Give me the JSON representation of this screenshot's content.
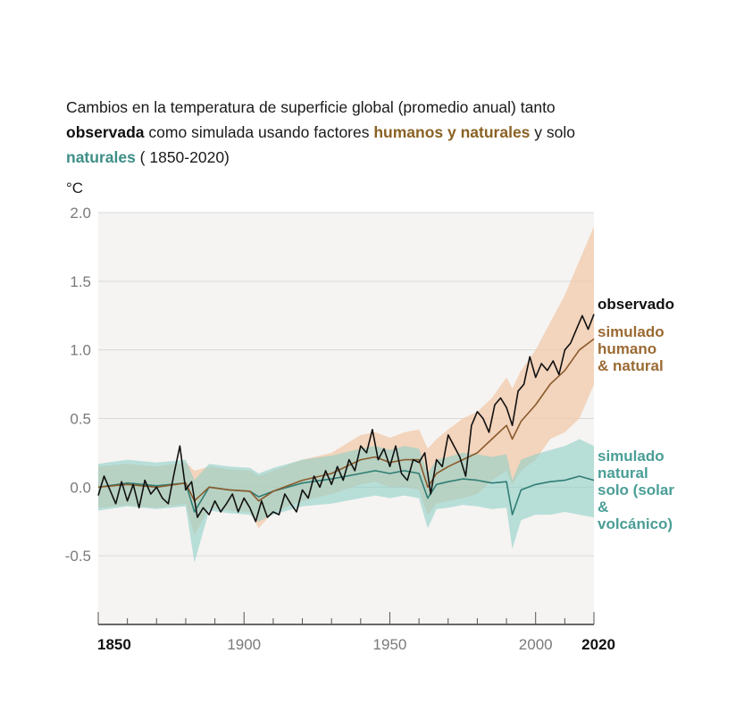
{
  "header": {
    "title_part1": "Cambios en la temperatura de superficie global (promedio anual) tanto",
    "title_bold_observed": "observada",
    "title_part2": " como simulada usando factores ",
    "title_human": "humanos y naturales",
    "title_part3": " y solo",
    "title_natural": "naturales",
    "title_part4": " ( 1850-2020)"
  },
  "colors": {
    "observed": "#111111",
    "human_line": "#8a5a2b",
    "human_band": "#f2c9aa",
    "natural_line": "#2f7d74",
    "natural_band": "#8fcfc6",
    "plot_bg": "#f5f4f2",
    "grid": "#d9d9d9"
  },
  "chart_data": {
    "type": "line",
    "title": "Cambios en la temperatura de superficie global (promedio anual) tanto observada como simulada usando factores humanos y naturales y solo naturales ( 1850-2020)",
    "ylabel": "°C",
    "xlim": [
      1850,
      2020
    ],
    "ylim": [
      -1.0,
      2.0
    ],
    "yticks": [
      "2.0",
      "1.5",
      "1.0",
      "0.5",
      "0.0",
      "-0.5"
    ],
    "ytick_values": [
      2.0,
      1.5,
      1.0,
      0.5,
      0.0,
      -0.5
    ],
    "xticks": [
      "1850",
      "1900",
      "1950",
      "2000",
      "2020"
    ],
    "xtick_values": [
      1850,
      1900,
      1950,
      2000,
      2020
    ],
    "series": [
      {
        "name": "observado",
        "label_lines": [
          "observado"
        ],
        "x": [
          1850,
          1852,
          1854,
          1856,
          1858,
          1860,
          1862,
          1864,
          1866,
          1868,
          1870,
          1872,
          1874,
          1876,
          1878,
          1880,
          1882,
          1884,
          1886,
          1888,
          1890,
          1892,
          1894,
          1896,
          1898,
          1900,
          1902,
          1904,
          1906,
          1908,
          1910,
          1912,
          1914,
          1916,
          1918,
          1920,
          1922,
          1924,
          1926,
          1928,
          1930,
          1932,
          1934,
          1936,
          1938,
          1940,
          1942,
          1944,
          1946,
          1948,
          1950,
          1952,
          1954,
          1956,
          1958,
          1960,
          1962,
          1964,
          1966,
          1968,
          1970,
          1972,
          1974,
          1976,
          1978,
          1980,
          1982,
          1984,
          1986,
          1988,
          1990,
          1992,
          1994,
          1996,
          1998,
          2000,
          2002,
          2004,
          2006,
          2008,
          2010,
          2012,
          2014,
          2016,
          2018,
          2020
        ],
        "values": [
          -0.06,
          0.08,
          -0.02,
          -0.12,
          0.04,
          -0.1,
          0.02,
          -0.15,
          0.05,
          -0.05,
          0.0,
          -0.08,
          -0.12,
          0.1,
          0.3,
          -0.02,
          0.04,
          -0.22,
          -0.15,
          -0.2,
          -0.1,
          -0.18,
          -0.12,
          -0.05,
          -0.18,
          -0.08,
          -0.15,
          -0.25,
          -0.1,
          -0.22,
          -0.18,
          -0.2,
          -0.05,
          -0.12,
          -0.18,
          -0.02,
          -0.08,
          0.08,
          0.0,
          0.12,
          0.02,
          0.15,
          0.05,
          0.2,
          0.12,
          0.3,
          0.25,
          0.42,
          0.2,
          0.28,
          0.15,
          0.3,
          0.1,
          0.05,
          0.2,
          0.18,
          0.25,
          -0.05,
          0.2,
          0.15,
          0.38,
          0.3,
          0.22,
          0.08,
          0.45,
          0.55,
          0.5,
          0.4,
          0.6,
          0.65,
          0.58,
          0.45,
          0.7,
          0.75,
          0.95,
          0.8,
          0.9,
          0.85,
          0.92,
          0.82,
          1.0,
          1.05,
          1.15,
          1.25,
          1.15,
          1.26
        ]
      },
      {
        "name": "simulado humano & natural",
        "label_lines": [
          "simulado",
          "humano",
          "& natural"
        ],
        "x": [
          1850,
          1860,
          1870,
          1880,
          1883,
          1888,
          1895,
          1902,
          1905,
          1910,
          1920,
          1930,
          1940,
          1945,
          1950,
          1955,
          1960,
          1963,
          1966,
          1970,
          1975,
          1980,
          1985,
          1990,
          1992,
          1995,
          2000,
          2005,
          2010,
          2015,
          2020
        ],
        "values": [
          0.0,
          0.02,
          0.0,
          0.03,
          -0.1,
          0.0,
          -0.02,
          -0.03,
          -0.1,
          -0.03,
          0.05,
          0.1,
          0.2,
          0.22,
          0.18,
          0.2,
          0.2,
          0.0,
          0.1,
          0.15,
          0.2,
          0.25,
          0.35,
          0.45,
          0.35,
          0.48,
          0.6,
          0.75,
          0.85,
          1.0,
          1.08
        ],
        "band_upper": [
          0.15,
          0.17,
          0.15,
          0.18,
          0.12,
          0.15,
          0.13,
          0.12,
          0.08,
          0.12,
          0.2,
          0.25,
          0.38,
          0.4,
          0.36,
          0.4,
          0.42,
          0.28,
          0.35,
          0.42,
          0.5,
          0.55,
          0.65,
          0.8,
          0.72,
          0.85,
          1.0,
          1.2,
          1.4,
          1.65,
          1.9
        ],
        "band_lower": [
          -0.15,
          -0.13,
          -0.15,
          -0.12,
          -0.35,
          -0.15,
          -0.17,
          -0.18,
          -0.3,
          -0.18,
          -0.1,
          -0.05,
          0.02,
          0.04,
          0.0,
          0.0,
          -0.02,
          -0.2,
          -0.12,
          -0.1,
          -0.08,
          -0.05,
          0.05,
          0.12,
          0.02,
          0.12,
          0.2,
          0.35,
          0.4,
          0.5,
          0.75
        ]
      },
      {
        "name": "simulado natural solo (solar & volcánico)",
        "label_lines": [
          "simulado",
          "natural",
          "solo (solar",
          "&",
          "volcánico)"
        ],
        "x": [
          1850,
          1860,
          1870,
          1880,
          1883,
          1888,
          1895,
          1902,
          1905,
          1910,
          1920,
          1930,
          1940,
          1945,
          1950,
          1955,
          1960,
          1963,
          1966,
          1970,
          1975,
          1980,
          1985,
          1990,
          1992,
          1995,
          2000,
          2005,
          2010,
          2015,
          2020
        ],
        "values": [
          0.0,
          0.03,
          0.01,
          0.03,
          -0.18,
          0.0,
          -0.02,
          -0.03,
          -0.07,
          -0.03,
          0.03,
          0.06,
          0.1,
          0.12,
          0.1,
          0.12,
          0.1,
          -0.08,
          0.02,
          0.04,
          0.06,
          0.05,
          0.03,
          0.04,
          -0.2,
          -0.02,
          0.02,
          0.04,
          0.05,
          0.08,
          0.05
        ],
        "band_upper": [
          0.17,
          0.2,
          0.18,
          0.2,
          0.05,
          0.17,
          0.15,
          0.14,
          0.1,
          0.14,
          0.2,
          0.23,
          0.28,
          0.3,
          0.27,
          0.3,
          0.28,
          0.1,
          0.2,
          0.22,
          0.25,
          0.24,
          0.22,
          0.24,
          0.05,
          0.2,
          0.24,
          0.27,
          0.3,
          0.35,
          0.3
        ],
        "band_lower": [
          -0.17,
          -0.14,
          -0.16,
          -0.14,
          -0.55,
          -0.17,
          -0.19,
          -0.2,
          -0.25,
          -0.2,
          -0.14,
          -0.12,
          -0.08,
          -0.06,
          -0.08,
          -0.06,
          -0.08,
          -0.3,
          -0.16,
          -0.15,
          -0.13,
          -0.14,
          -0.16,
          -0.15,
          -0.45,
          -0.24,
          -0.2,
          -0.2,
          -0.18,
          -0.2,
          -0.22
        ]
      }
    ]
  }
}
